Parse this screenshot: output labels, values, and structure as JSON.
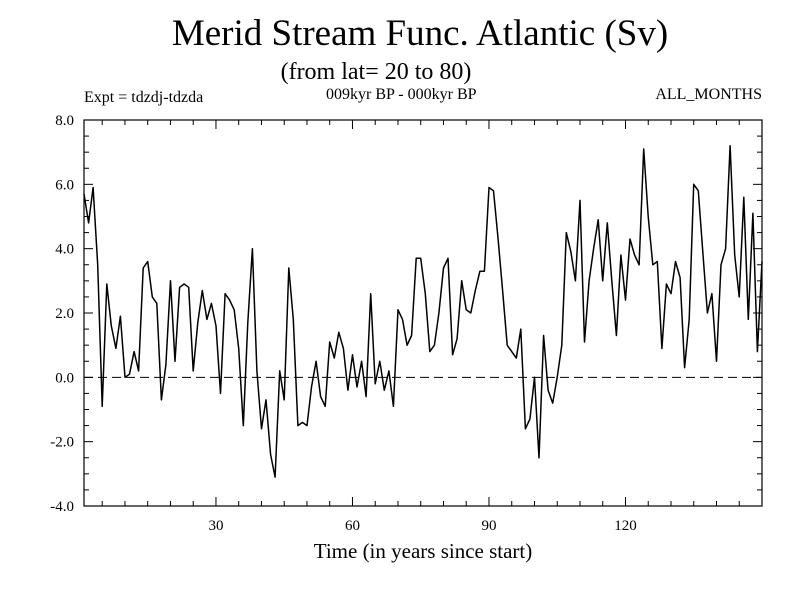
{
  "header": {
    "title": "Merid Stream Func. Atlantic (Sv)",
    "subtitle": "(from lat= 20 to 80)",
    "expt": "Expt = tdzdj-tdzda",
    "period": "009kyr BP - 000kyr BP",
    "months": "ALL_MONTHS"
  },
  "chart_data": {
    "type": "line",
    "title": "Merid Stream Func. Atlantic (Sv)",
    "subtitle": "(from lat= 20 to 80)",
    "xlabel": "Time (in years since start)",
    "ylabel": "",
    "xlim": [
      1,
      150
    ],
    "ylim": [
      -4.0,
      8.0
    ],
    "x_ticks": [
      30,
      60,
      90,
      120
    ],
    "x_tick_labels": [
      "30",
      "60",
      "90",
      "120"
    ],
    "y_ticks": [
      -4,
      -2,
      0,
      2,
      4,
      6,
      8
    ],
    "y_tick_labels": [
      "-4.0",
      "-2.0",
      "0.0",
      "2.0",
      "4.0",
      "6.0",
      "8.0"
    ],
    "reference_line": {
      "y": 0,
      "style": "dashed"
    },
    "series": [
      {
        "name": "tdzdj-tdzda",
        "x_start": 1,
        "x_step": 1,
        "values": [
          5.7,
          4.8,
          5.9,
          3.5,
          -0.9,
          2.9,
          1.6,
          0.9,
          1.9,
          0.0,
          0.1,
          0.8,
          0.2,
          3.4,
          3.6,
          2.5,
          2.3,
          -0.7,
          0.4,
          3.0,
          0.5,
          2.8,
          2.9,
          2.8,
          0.2,
          1.7,
          2.7,
          1.8,
          2.3,
          1.6,
          -0.5,
          2.6,
          2.4,
          2.1,
          0.9,
          -1.5,
          1.7,
          4.0,
          0.2,
          -1.6,
          -0.7,
          -2.4,
          -3.1,
          0.2,
          -0.7,
          3.4,
          1.8,
          -1.5,
          -1.4,
          -1.5,
          -0.3,
          0.5,
          -0.6,
          -0.9,
          1.1,
          0.6,
          1.4,
          0.9,
          -0.4,
          0.7,
          -0.3,
          0.5,
          -0.6,
          2.6,
          -0.2,
          0.5,
          -0.4,
          0.2,
          -0.9,
          2.1,
          1.8,
          1.0,
          1.3,
          3.7,
          3.7,
          2.6,
          0.8,
          1.0,
          2.0,
          3.4,
          3.7,
          0.7,
          1.2,
          3.0,
          2.1,
          2.0,
          2.7,
          3.3,
          3.3,
          5.9,
          5.8,
          4.3,
          2.7,
          1.0,
          0.8,
          0.6,
          1.5,
          -1.6,
          -1.3,
          0.0,
          -2.5,
          1.3,
          -0.4,
          -0.8,
          0.0,
          1.0,
          4.5,
          3.9,
          3.0,
          5.5,
          1.1,
          3.0,
          4.0,
          4.9,
          3.0,
          4.8,
          3.0,
          1.3,
          3.8,
          2.4,
          4.3,
          3.8,
          3.5,
          7.1,
          5.0,
          3.5,
          3.6,
          0.9,
          2.9,
          2.6,
          3.6,
          3.1,
          0.3,
          1.8,
          6.0,
          5.8,
          3.9,
          2.0,
          2.6,
          0.5,
          3.5,
          4.0,
          7.2,
          3.8,
          2.5,
          5.6,
          1.8,
          5.1,
          0.8,
          3.6
        ]
      }
    ]
  }
}
